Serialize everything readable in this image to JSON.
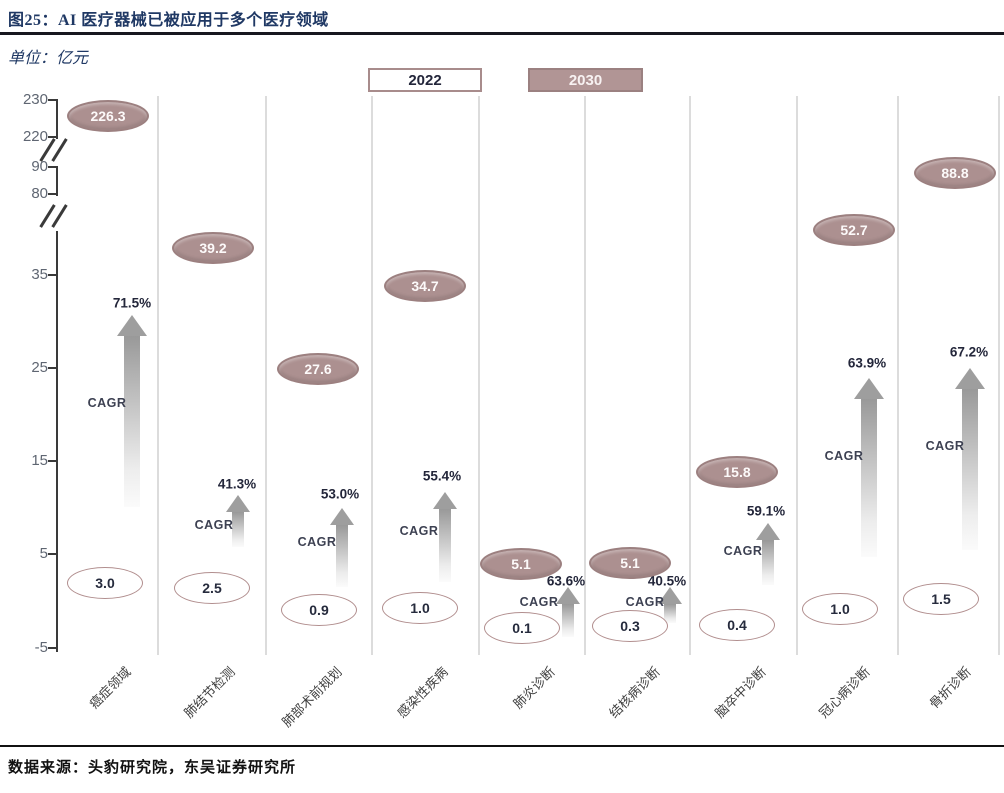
{
  "header": {
    "title": "图25：AI 医疗器械已被应用于多个医疗领域"
  },
  "chart": {
    "unit_label": "单位：亿元",
    "legend": [
      {
        "label": "2022",
        "style": "outline"
      },
      {
        "label": "2030",
        "style": "filled"
      }
    ],
    "cagr_label": "CAGR",
    "y_axis_ticks": [
      "230",
      "220",
      "90",
      "80",
      "35",
      "25",
      "15",
      "5",
      "-5"
    ]
  },
  "chart_data": {
    "type": "bar",
    "title": "图25：AI 医疗器械已被应用于多个医疗领域",
    "unit": "亿元",
    "categories": [
      "癌症领域",
      "肺结节检测",
      "肺部术前规划",
      "感染性疾病",
      "肺炎诊断",
      "结核病诊断",
      "脑卒中诊断",
      "冠心病诊断",
      "骨折诊断"
    ],
    "series": [
      {
        "name": "2022",
        "values": [
          3.0,
          2.5,
          0.9,
          1.0,
          0.1,
          0.3,
          0.4,
          1.0,
          1.5
        ]
      },
      {
        "name": "2030",
        "values": [
          226.3,
          39.2,
          27.6,
          34.7,
          5.1,
          5.1,
          15.8,
          52.7,
          88.8
        ]
      }
    ],
    "cagr_percent": [
      71.5,
      41.3,
      53.0,
      55.4,
      63.6,
      40.5,
      59.1,
      63.9,
      67.2
    ],
    "y_ticks": [
      -5,
      5,
      15,
      25,
      35,
      80,
      90,
      220,
      230
    ],
    "axis_breaks": [
      [
        35,
        80
      ],
      [
        90,
        220
      ]
    ],
    "legend_position": "top-center",
    "grid": "vertical-gridlines-only",
    "annotation": "每列以 CAGR 渐变箭头连接 2022 与 2030 数值气泡"
  },
  "footer": {
    "source": "数据来源：头豹研究院，东吴证券研究所"
  },
  "colors": {
    "title_navy": "#1F3864",
    "bubble_fill": "#AC9090",
    "bubble_border": "#9C8080",
    "outline_border": "#B18E8E",
    "value_text_dark": "#262B3D",
    "arrow_gray": "#9E9E9E",
    "gridline_gray": "#DCDCDC",
    "axis_gray": "#3A3A3A"
  }
}
